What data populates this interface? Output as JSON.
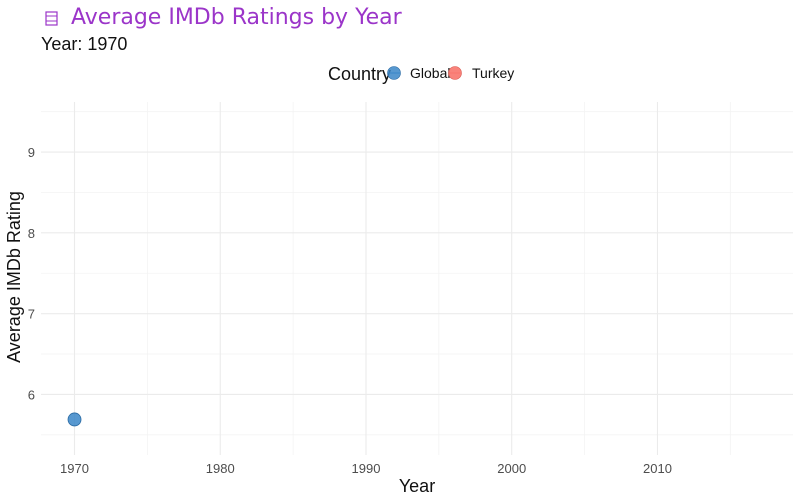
{
  "chart_data": {
    "type": "scatter",
    "title_icon": "film-icon",
    "title": "Average IMDb Ratings by Year",
    "subtitle": "Year: 1970",
    "xlabel": "Year",
    "ylabel": "Average IMDb Rating",
    "xlim": [
      1967.7,
      2019.3
    ],
    "ylim": [
      5.25,
      9.62
    ],
    "x_ticks": [
      1970,
      1980,
      1990,
      2000,
      2010
    ],
    "y_ticks": [
      6,
      7,
      8,
      9
    ],
    "grid": true,
    "legend": {
      "title": "Country",
      "placement": "top-center",
      "entries": [
        {
          "name": "Global",
          "color": "#3a86c8"
        },
        {
          "name": "Turkey",
          "color": "#f8766d"
        }
      ]
    },
    "series": [
      {
        "name": "Global",
        "color": "#3a86c8",
        "points": [
          {
            "x": 1970,
            "y": 5.69
          }
        ]
      },
      {
        "name": "Turkey",
        "color": "#f8766d",
        "points": []
      }
    ]
  }
}
